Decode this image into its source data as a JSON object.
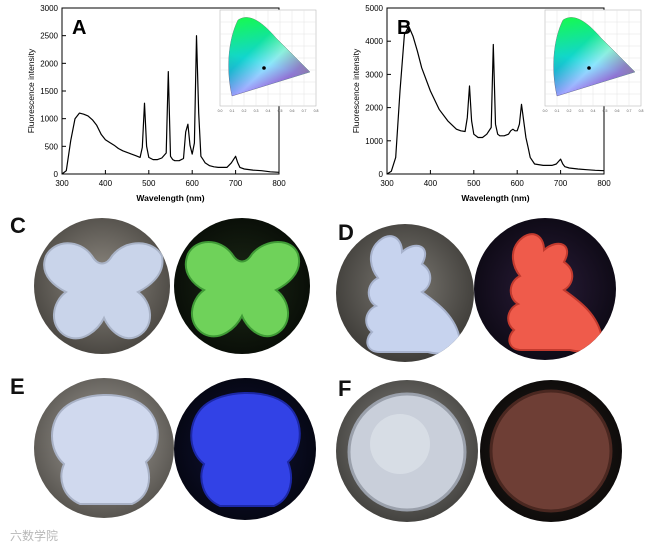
{
  "panels": {
    "A": "A",
    "B": "B",
    "C": "C",
    "D": "D",
    "E": "E",
    "F": "F"
  },
  "chart_data": [
    {
      "type": "line",
      "panel": "A",
      "xlabel": "Wavelength (nm)",
      "ylabel": "Fluorescence intensity",
      "xlim": [
        300,
        800
      ],
      "ylim": [
        0,
        3000
      ],
      "xticks": [
        300,
        400,
        500,
        600,
        700,
        800
      ],
      "yticks": [
        0,
        500,
        1000,
        1500,
        2000,
        2500,
        3000
      ],
      "x": [
        300,
        310,
        320,
        330,
        340,
        350,
        360,
        370,
        380,
        390,
        400,
        410,
        420,
        430,
        440,
        450,
        460,
        470,
        480,
        485,
        490,
        495,
        500,
        510,
        520,
        530,
        540,
        545,
        550,
        555,
        560,
        570,
        580,
        585,
        590,
        595,
        600,
        605,
        610,
        615,
        620,
        625,
        630,
        640,
        650,
        660,
        670,
        680,
        690,
        700,
        705,
        710,
        720,
        740,
        760,
        780,
        800
      ],
      "y": [
        0,
        60,
        600,
        1000,
        1100,
        1080,
        1050,
        980,
        880,
        720,
        620,
        570,
        520,
        460,
        420,
        390,
        360,
        330,
        300,
        480,
        1280,
        500,
        300,
        260,
        260,
        290,
        380,
        1850,
        320,
        260,
        240,
        240,
        280,
        760,
        900,
        520,
        360,
        560,
        2500,
        1100,
        320,
        260,
        200,
        150,
        130,
        120,
        120,
        120,
        200,
        320,
        200,
        120,
        90,
        70,
        60,
        40,
        30
      ],
      "inset": {
        "type": "cie-1931",
        "ticks": [
          "0.0",
          "0.1",
          "0.2",
          "0.3",
          "0.4",
          "0.5",
          "0.6",
          "0.7",
          "0.8"
        ]
      }
    },
    {
      "type": "line",
      "panel": "B",
      "xlabel": "Wavelength (nm)",
      "ylabel": "Fluorescence intensity",
      "xlim": [
        300,
        800
      ],
      "ylim": [
        0,
        5000
      ],
      "xticks": [
        300,
        400,
        500,
        600,
        700,
        800
      ],
      "yticks": [
        0,
        1000,
        2000,
        3000,
        4000,
        5000
      ],
      "x": [
        300,
        310,
        320,
        330,
        340,
        350,
        360,
        370,
        380,
        400,
        420,
        440,
        460,
        470,
        480,
        485,
        490,
        495,
        500,
        510,
        520,
        530,
        540,
        545,
        550,
        555,
        560,
        570,
        580,
        585,
        590,
        595,
        600,
        605,
        610,
        615,
        620,
        625,
        630,
        640,
        660,
        680,
        690,
        700,
        705,
        710,
        720,
        740,
        760,
        780,
        800
      ],
      "y": [
        0,
        80,
        500,
        2500,
        4200,
        4450,
        4150,
        3700,
        3200,
        2500,
        1950,
        1600,
        1350,
        1300,
        1280,
        1700,
        2650,
        1600,
        1200,
        1100,
        1100,
        1200,
        1400,
        3900,
        1500,
        1200,
        1150,
        1150,
        1200,
        1300,
        1350,
        1300,
        1300,
        1500,
        2100,
        1600,
        1100,
        800,
        500,
        300,
        260,
        260,
        300,
        450,
        300,
        220,
        180,
        150,
        130,
        110,
        100
      ],
      "inset": {
        "type": "cie-1931",
        "ticks": [
          "0.0",
          "0.1",
          "0.2",
          "0.3",
          "0.4",
          "0.5",
          "0.6",
          "0.7",
          "0.8"
        ]
      }
    }
  ],
  "watermark": "六数学院"
}
